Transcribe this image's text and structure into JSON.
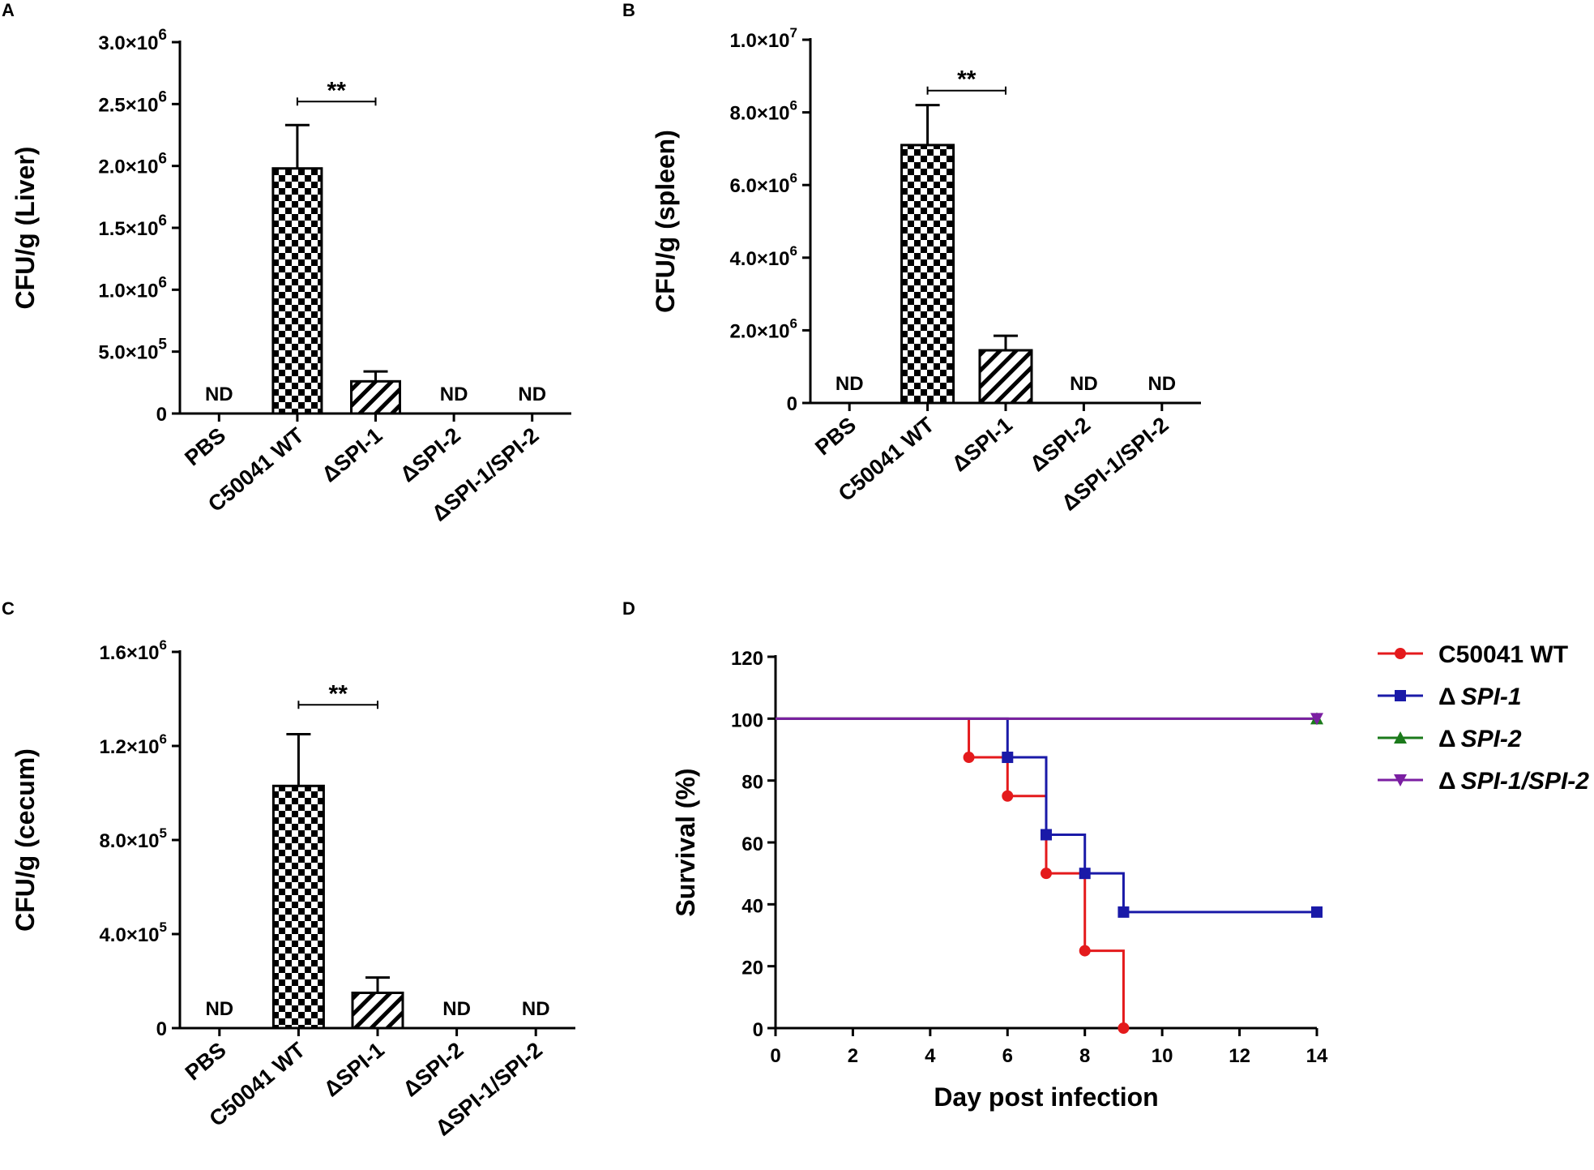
{
  "panels": {
    "a": {
      "letter": "A"
    },
    "b": {
      "letter": "B"
    },
    "c": {
      "letter": "C"
    },
    "d": {
      "letter": "D"
    }
  },
  "chart_data": [
    {
      "id": "A",
      "type": "bar",
      "ylabel": "CFU/g (Liver)",
      "xlabel": "",
      "categories": [
        "PBS",
        "C50041 WT",
        "ΔSPI-1",
        "ΔSPI-2",
        "ΔSPI-1/SPI-2"
      ],
      "values": [
        0,
        1980000,
        260000,
        0,
        0
      ],
      "errors": [
        0,
        350000,
        80000,
        0,
        0
      ],
      "patterns": [
        "none",
        "checker",
        "hatch",
        "none",
        "none"
      ],
      "not_detected": [
        true,
        false,
        false,
        true,
        true
      ],
      "nd_label": "ND",
      "ylim": [
        0,
        3000000
      ],
      "yticks": [
        0,
        500000,
        1000000,
        1500000,
        2000000,
        2500000,
        3000000
      ],
      "ytick_labels": [
        {
          "mantissa": "0",
          "exp": ""
        },
        {
          "mantissa": "5.0×10",
          "exp": "5"
        },
        {
          "mantissa": "1.0×10",
          "exp": "6"
        },
        {
          "mantissa": "1.5×10",
          "exp": "6"
        },
        {
          "mantissa": "2.0×10",
          "exp": "6"
        },
        {
          "mantissa": "2.5×10",
          "exp": "6"
        },
        {
          "mantissa": "3.0×10",
          "exp": "6"
        }
      ],
      "significance": {
        "from": 1,
        "to": 2,
        "label": "**",
        "y": 2520000
      }
    },
    {
      "id": "B",
      "type": "bar",
      "ylabel": "CFU/g (spleen)",
      "xlabel": "",
      "categories": [
        "PBS",
        "C50041 WT",
        "ΔSPI-1",
        "ΔSPI-2",
        "ΔSPI-1/SPI-2"
      ],
      "values": [
        0,
        7100000,
        1450000,
        0,
        0
      ],
      "errors": [
        0,
        1100000,
        400000,
        0,
        0
      ],
      "patterns": [
        "none",
        "checker",
        "hatch",
        "none",
        "none"
      ],
      "not_detected": [
        true,
        false,
        false,
        true,
        true
      ],
      "nd_label": "ND",
      "ylim": [
        0,
        10000000
      ],
      "yticks": [
        0,
        2000000,
        4000000,
        6000000,
        8000000,
        10000000
      ],
      "ytick_labels": [
        {
          "mantissa": "0",
          "exp": ""
        },
        {
          "mantissa": "2.0×10",
          "exp": "6"
        },
        {
          "mantissa": "4.0×10",
          "exp": "6"
        },
        {
          "mantissa": "6.0×10",
          "exp": "6"
        },
        {
          "mantissa": "8.0×10",
          "exp": "6"
        },
        {
          "mantissa": "1.0×10",
          "exp": "7"
        }
      ],
      "significance": {
        "from": 1,
        "to": 2,
        "label": "**",
        "y": 8600000
      }
    },
    {
      "id": "C",
      "type": "bar",
      "ylabel": "CFU/g (cecum)",
      "xlabel": "",
      "categories": [
        "PBS",
        "C50041 WT",
        "ΔSPI-1",
        "ΔSPI-2",
        "ΔSPI-1/SPI-2"
      ],
      "values": [
        0,
        1030000,
        150000,
        0,
        0
      ],
      "errors": [
        0,
        220000,
        65000,
        0,
        0
      ],
      "patterns": [
        "none",
        "checker",
        "hatch",
        "none",
        "none"
      ],
      "not_detected": [
        true,
        false,
        false,
        true,
        true
      ],
      "nd_label": "ND",
      "ylim": [
        0,
        1600000
      ],
      "yticks": [
        0,
        400000,
        800000,
        1200000,
        1600000
      ],
      "ytick_labels": [
        {
          "mantissa": "0",
          "exp": ""
        },
        {
          "mantissa": "4.0×10",
          "exp": "5"
        },
        {
          "mantissa": "8.0×10",
          "exp": "5"
        },
        {
          "mantissa": "1.2×10",
          "exp": "6"
        },
        {
          "mantissa": "1.6×10",
          "exp": "6"
        }
      ],
      "significance": {
        "from": 1,
        "to": 2,
        "label": "**",
        "y": 1375000
      }
    },
    {
      "id": "D",
      "type": "line",
      "step": true,
      "ylabel": "Survival (%)",
      "xlabel": "Day post infection",
      "xlim": [
        0,
        14
      ],
      "ylim": [
        0,
        120
      ],
      "xticks": [
        0,
        2,
        4,
        6,
        8,
        10,
        12,
        14
      ],
      "yticks": [
        0,
        20,
        40,
        60,
        80,
        100,
        120
      ],
      "legend_position": "top-right",
      "series": [
        {
          "name": "C50041 WT",
          "color": "#e41a1c",
          "marker": "circle",
          "x": [
            0,
            5,
            6,
            7,
            8,
            9
          ],
          "y": [
            100,
            87.5,
            75,
            50,
            25,
            0
          ],
          "marker_x": [
            5,
            6,
            7,
            8,
            9
          ],
          "marker_y": [
            87.5,
            75,
            50,
            25,
            0
          ],
          "end_x": 9
        },
        {
          "name": "ΔSPI-1",
          "legend_prefix": "Δ",
          "legend_name": "SPI-1",
          "color": "#1a1aa8",
          "marker": "square",
          "x": [
            0,
            6,
            7,
            8,
            9,
            14
          ],
          "y": [
            100,
            87.5,
            62.5,
            50,
            37.5,
            37.5
          ],
          "marker_x": [
            6,
            7,
            8,
            9,
            14
          ],
          "marker_y": [
            87.5,
            62.5,
            50,
            37.5,
            37.5
          ],
          "end_x": 14
        },
        {
          "name": "ΔSPI-2",
          "legend_prefix": "Δ",
          "legend_name": "SPI-2",
          "color": "#1b7a1b",
          "marker": "triangle-up",
          "x": [
            0,
            14
          ],
          "y": [
            100,
            100
          ],
          "marker_x": [
            14
          ],
          "marker_y": [
            100
          ],
          "end_x": 14
        },
        {
          "name": "ΔSPI-1/SPI-2",
          "legend_prefix": "Δ",
          "legend_name": "SPI-1/SPI-2",
          "color": "#7b1fa2",
          "marker": "triangle-down",
          "x": [
            0,
            14
          ],
          "y": [
            100,
            100
          ],
          "marker_x": [
            14
          ],
          "marker_y": [
            100
          ],
          "end_x": 14
        }
      ]
    }
  ]
}
